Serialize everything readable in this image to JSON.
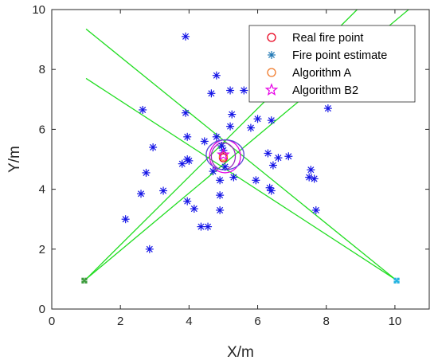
{
  "chart_data": {
    "type": "scatter",
    "title": "",
    "xlabel": "X/m",
    "ylabel": "Y/m",
    "xlim": [
      0,
      11
    ],
    "ylim": [
      0,
      10
    ],
    "xticks": [
      "0",
      "2",
      "4",
      "6",
      "8",
      "10"
    ],
    "yticks": [
      "0",
      "2",
      "4",
      "6",
      "8",
      "10"
    ],
    "grid": false,
    "legend_position": "top-right",
    "legend": [
      {
        "label": "Real fire point",
        "marker": "circle",
        "color": "#e8001c"
      },
      {
        "label": "Fire point estimate",
        "marker": "asterisk",
        "color": "#1f77b4"
      },
      {
        "label": "Algorithm A",
        "marker": "circle",
        "color": "#f07a2a"
      },
      {
        "label": "Algorithm B2",
        "marker": "pentagram",
        "color": "#e600e6"
      }
    ],
    "series": [
      {
        "name": "Fire point estimate",
        "marker": "asterisk",
        "color": "#1414e6",
        "points": [
          [
            3.9,
            9.1
          ],
          [
            4.8,
            7.8
          ],
          [
            5.2,
            7.3
          ],
          [
            5.6,
            7.3
          ],
          [
            4.65,
            7.2
          ],
          [
            2.65,
            6.65
          ],
          [
            3.9,
            6.55
          ],
          [
            5.25,
            6.5
          ],
          [
            6.0,
            6.35
          ],
          [
            6.4,
            6.3
          ],
          [
            8.05,
            6.7
          ],
          [
            5.2,
            6.1
          ],
          [
            5.8,
            6.05
          ],
          [
            3.95,
            5.75
          ],
          [
            4.8,
            5.75
          ],
          [
            4.45,
            5.6
          ],
          [
            2.95,
            5.4
          ],
          [
            4.95,
            5.45
          ],
          [
            5.0,
            5.3
          ],
          [
            6.3,
            5.2
          ],
          [
            6.6,
            5.05
          ],
          [
            6.9,
            5.1
          ],
          [
            3.95,
            5.0
          ],
          [
            3.8,
            4.85
          ],
          [
            4.0,
            4.95
          ],
          [
            4.7,
            4.6
          ],
          [
            5.3,
            4.4
          ],
          [
            5.05,
            4.75
          ],
          [
            6.45,
            4.8
          ],
          [
            7.55,
            4.65
          ],
          [
            2.75,
            4.55
          ],
          [
            7.5,
            4.4
          ],
          [
            7.65,
            4.35
          ],
          [
            5.95,
            4.3
          ],
          [
            4.9,
            4.3
          ],
          [
            6.35,
            4.05
          ],
          [
            6.4,
            3.95
          ],
          [
            3.25,
            3.95
          ],
          [
            2.6,
            3.85
          ],
          [
            4.9,
            3.8
          ],
          [
            3.95,
            3.6
          ],
          [
            4.15,
            3.35
          ],
          [
            4.9,
            3.3
          ],
          [
            7.7,
            3.3
          ],
          [
            2.15,
            3.0
          ],
          [
            4.35,
            2.75
          ],
          [
            4.55,
            2.75
          ],
          [
            2.85,
            2.0
          ]
        ]
      },
      {
        "name": "Real fire point",
        "marker": "circle",
        "color": "#e8001c",
        "points": [
          [
            5.0,
            5.05
          ]
        ]
      },
      {
        "name": "Algorithm A",
        "marker": "circle",
        "color": "#f07a2a",
        "points": [
          [
            5.0,
            5.1
          ]
        ]
      },
      {
        "name": "Algorithm B2",
        "marker": "pentagram",
        "color": "#e600e6",
        "points": [
          [
            5.0,
            5.15
          ]
        ]
      }
    ],
    "sensors": [
      {
        "x": 0.95,
        "y": 0.95,
        "color": "#3a9a3a"
      },
      {
        "x": 10.05,
        "y": 0.95,
        "color": "#22b3e0"
      }
    ],
    "bearing_lines": [
      {
        "from": [
          1.0,
          1.0
        ],
        "to": [
          8.9,
          10.0
        ]
      },
      {
        "from": [
          1.0,
          1.0
        ],
        "to": [
          10.4,
          10.0
        ]
      },
      {
        "from": [
          10.0,
          1.0
        ],
        "to": [
          1.0,
          9.35
        ]
      },
      {
        "from": [
          10.0,
          1.0
        ],
        "to": [
          1.0,
          7.7
        ]
      }
    ],
    "confidence_ellipses": [
      {
        "center": [
          5.05,
          5.1
        ],
        "rx": 0.45,
        "ry": 0.55,
        "color": "#e600e6"
      },
      {
        "center": [
          5.0,
          5.1
        ],
        "rx": 0.35,
        "ry": 0.45,
        "color": "#9b2bbf"
      },
      {
        "center": [
          5.05,
          5.15
        ],
        "rx": 0.55,
        "ry": 0.5,
        "color": "#5b4bd6"
      }
    ]
  }
}
